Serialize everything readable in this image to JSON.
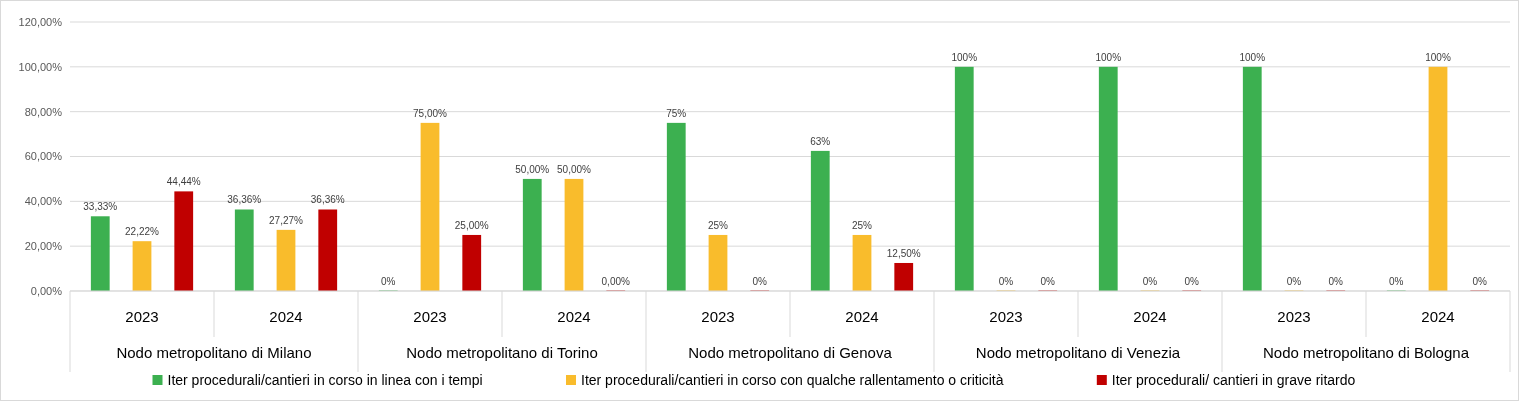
{
  "chart_data": {
    "type": "bar",
    "categories": [
      "2023",
      "2024",
      "2023",
      "2024",
      "2023",
      "2024",
      "2023",
      "2024",
      "2023",
      "2024"
    ],
    "annotations": [
      "Nodo metropolitano di Milano",
      "Nodo metropolitano di Torino",
      "Nodo metropolitano di Genova",
      "Nodo metropolitano di Venezia",
      "Nodo metropolitano di Bologna"
    ],
    "series": [
      {
        "name": "Iter procedurali/cantieri in corso in linea con i tempi",
        "color": "#3cb050",
        "values": [
          33.33,
          36.36,
          0,
          50,
          75,
          62.5,
          100,
          100,
          100,
          0
        ],
        "value_labels": [
          "33,33%",
          "36,36%",
          "0%",
          "50,00%",
          "75%",
          "63%",
          "100%",
          "100%",
          "100%",
          "0%"
        ]
      },
      {
        "name": "Iter procedurali/cantieri in corso con qualche rallentamento o criticità",
        "color": "#f9bc2c",
        "values": [
          22.22,
          27.27,
          75,
          50,
          25,
          25,
          0,
          0,
          0,
          100
        ],
        "value_labels": [
          "22,22%",
          "27,27%",
          "75,00%",
          "50,00%",
          "25%",
          "25%",
          "0%",
          "0%",
          "0%",
          "100%"
        ]
      },
      {
        "name": "Iter procedurali/ cantieri in grave ritardo",
        "color": "#c00000",
        "values": [
          44.44,
          36.36,
          25,
          0,
          0,
          12.5,
          0,
          0,
          0,
          0
        ],
        "value_labels": [
          "44,44%",
          "36,36%",
          "25,00%",
          "0,00%",
          "0%",
          "12,50%",
          "0%",
          "0%",
          "0%",
          "0%"
        ]
      }
    ],
    "ylim": [
      0,
      120
    ],
    "yticks": [
      {
        "value": 0,
        "label": "0,00%"
      },
      {
        "value": 20,
        "label": "20,00%"
      },
      {
        "value": 40,
        "label": "40,00%"
      },
      {
        "value": 60,
        "label": "60,00%"
      },
      {
        "value": 80,
        "label": "80,00%"
      },
      {
        "value": 100,
        "label": "100,00%"
      },
      {
        "value": 120,
        "label": "120,00%"
      }
    ],
    "grid": "y",
    "legend": "bottom"
  }
}
